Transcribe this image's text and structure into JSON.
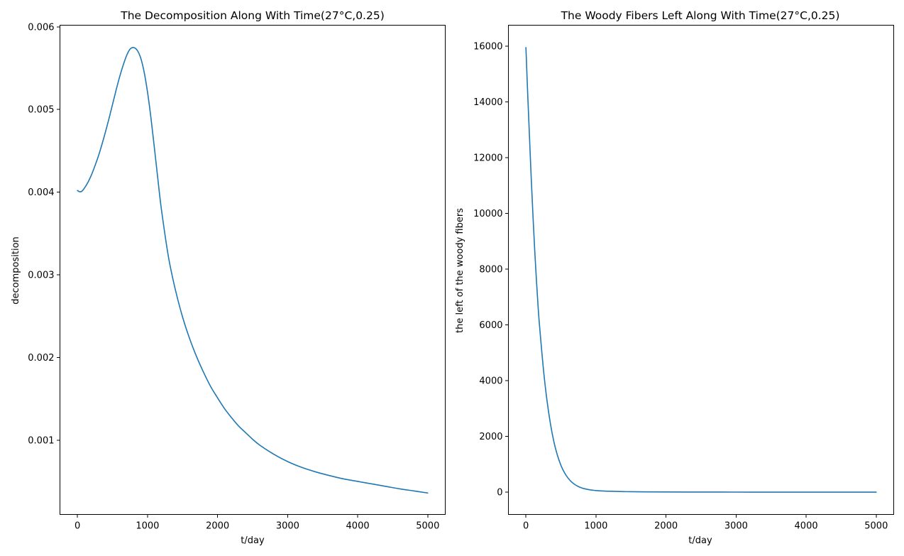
{
  "chart_data": [
    {
      "type": "line",
      "title": "The Decomposition Along With Time(27°C,0.25)",
      "xlabel": "t/day",
      "ylabel": "decomposition",
      "xlim": [
        -250,
        5250
      ],
      "ylim": [
        0.0001,
        0.00602
      ],
      "x_ticks": [
        0,
        1000,
        2000,
        3000,
        4000,
        5000
      ],
      "x_tick_labels": [
        "0",
        "1000",
        "2000",
        "3000",
        "4000",
        "5000"
      ],
      "y_ticks": [
        0.001,
        0.002,
        0.003,
        0.004,
        0.005,
        0.006
      ],
      "y_tick_labels": [
        "0.001",
        "0.002",
        "0.003",
        "0.004",
        "0.005",
        "0.006"
      ],
      "grid": false,
      "series": [
        {
          "color": "#1f77b4",
          "x": [
            0,
            30,
            60,
            100,
            150,
            200,
            250,
            300,
            350,
            400,
            450,
            500,
            550,
            600,
            650,
            700,
            750,
            800,
            850,
            900,
            950,
            1000,
            1050,
            1100,
            1150,
            1200,
            1300,
            1400,
            1500,
            1600,
            1700,
            1800,
            1900,
            2000,
            2100,
            2200,
            2300,
            2400,
            2500,
            2600,
            2800,
            3000,
            3200,
            3400,
            3600,
            3800,
            4000,
            4200,
            4400,
            4600,
            4800,
            5000
          ],
          "y": [
            0.00402,
            0.004005,
            0.00401,
            0.00405,
            0.00412,
            0.00421,
            0.00432,
            0.00444,
            0.00458,
            0.00473,
            0.00489,
            0.00506,
            0.00523,
            0.00539,
            0.00553,
            0.00565,
            0.00573,
            0.00575,
            0.00572,
            0.00563,
            0.00546,
            0.00521,
            0.00489,
            0.00452,
            0.00414,
            0.00378,
            0.00321,
            0.00281,
            0.00249,
            0.00223,
            0.00201,
            0.00182,
            0.00165,
            0.00151,
            0.00138,
            0.00127,
            0.00117,
            0.00109,
            0.00101,
            0.00094,
            0.00083,
            0.00074,
            0.00067,
            0.000615,
            0.00057,
            0.00053,
            0.0005,
            0.00047,
            0.00044,
            0.00041,
            0.000385,
            0.00036
          ]
        }
      ]
    },
    {
      "type": "line",
      "title": "The Woody Fibers Left Along With Time(27°C,0.25)",
      "xlabel": "t/day",
      "ylabel": "the left of the woody fibers",
      "xlim": [
        -250,
        5250
      ],
      "ylim": [
        -800,
        16750
      ],
      "x_ticks": [
        0,
        1000,
        2000,
        3000,
        4000,
        5000
      ],
      "x_tick_labels": [
        "0",
        "1000",
        "2000",
        "3000",
        "4000",
        "5000"
      ],
      "y_ticks": [
        0,
        2000,
        4000,
        6000,
        8000,
        10000,
        12000,
        14000,
        16000
      ],
      "y_tick_labels": [
        "0",
        "2000",
        "4000",
        "6000",
        "8000",
        "10000",
        "12000",
        "14000",
        "16000"
      ],
      "grid": false,
      "series": [
        {
          "color": "#1f77b4",
          "x": [
            0,
            25,
            50,
            75,
            100,
            125,
            150,
            175,
            200,
            250,
            300,
            350,
            400,
            450,
            500,
            550,
            600,
            650,
            700,
            750,
            800,
            850,
            900,
            950,
            1000,
            1100,
            1200,
            1300,
            1400,
            1500,
            1700,
            2000,
            2500,
            3000,
            3500,
            4000,
            4500,
            5000
          ],
          "y": [
            15950,
            14300,
            12800,
            11300,
            9950,
            8700,
            7600,
            6600,
            5800,
            4400,
            3300,
            2450,
            1800,
            1320,
            960,
            700,
            510,
            370,
            270,
            200,
            150,
            115,
            90,
            72,
            58,
            42,
            32,
            25,
            20,
            16,
            11,
            7,
            4,
            2,
            1,
            0.5,
            0.3,
            0.2
          ]
        }
      ]
    }
  ]
}
